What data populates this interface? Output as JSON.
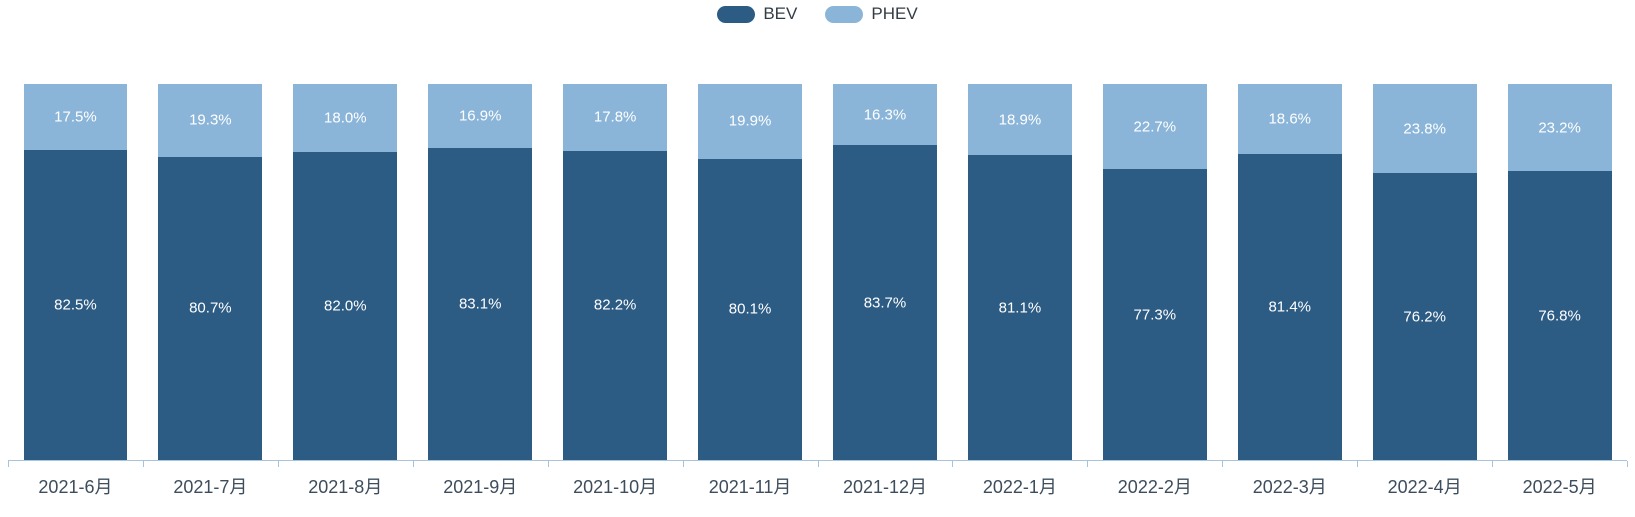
{
  "legend": {
    "items": [
      {
        "label": "BEV",
        "color": "#2c5b84"
      },
      {
        "label": "PHEV",
        "color": "#8ab5d9"
      }
    ]
  },
  "colors": {
    "bev": "#2c5b84",
    "phev": "#8ab5d9",
    "axis": "#a7c4dc",
    "axis_label": "#3d4d5c",
    "value_label": "#ffffff"
  },
  "chart_data": {
    "type": "bar",
    "stacked": true,
    "title": "",
    "xlabel": "",
    "ylabel": "",
    "ylim": [
      0,
      100
    ],
    "grid": false,
    "legend_position": "top-center",
    "value_suffix": "%",
    "categories": [
      "2021-6月",
      "2021-7月",
      "2021-8月",
      "2021-9月",
      "2021-10月",
      "2021-11月",
      "2021-12月",
      "2022-1月",
      "2022-2月",
      "2022-3月",
      "2022-4月",
      "2022-5月"
    ],
    "series": [
      {
        "name": "BEV",
        "color": "#2c5b84",
        "values": [
          82.5,
          80.7,
          82.0,
          83.1,
          82.2,
          80.1,
          83.7,
          81.1,
          77.3,
          81.4,
          76.2,
          76.8
        ],
        "labels": [
          "82.5%",
          "80.7%",
          "82.0%",
          "83.1%",
          "82.2%",
          "80.1%",
          "83.7%",
          "81.1%",
          "77.3%",
          "81.4%",
          "76.2%",
          "76.8%"
        ]
      },
      {
        "name": "PHEV",
        "color": "#8ab5d9",
        "values": [
          17.5,
          19.3,
          18.0,
          16.9,
          17.8,
          19.9,
          16.3,
          18.9,
          22.7,
          18.6,
          23.8,
          23.2
        ],
        "labels": [
          "17.5%",
          "19.3%",
          "18.0%",
          "16.9%",
          "17.8%",
          "19.9%",
          "16.3%",
          "18.9%",
          "22.7%",
          "18.6%",
          "23.8%",
          "23.2%"
        ]
      }
    ]
  }
}
